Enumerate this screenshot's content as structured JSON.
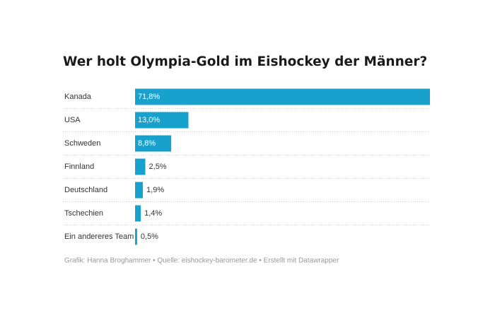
{
  "chart_data": {
    "type": "bar",
    "orientation": "horizontal",
    "title": "Wer holt Olympia-Gold im Eishockey der Männer?",
    "categories": [
      "Kanada",
      "USA",
      "Schweden",
      "Finnland",
      "Deutschland",
      "Tschechien",
      "Ein andereres Team"
    ],
    "values": [
      71.8,
      13.0,
      8.8,
      2.5,
      1.9,
      1.4,
      0.5
    ],
    "value_labels": [
      "71,8%",
      "13,0%",
      "8,8%",
      "2,5%",
      "1,9%",
      "1,4%",
      "0,5%"
    ],
    "color": "#18a1cd",
    "footer": "Grafik: Hanna Broghammer • Quelle: eishockey-barometer.de • Erstellt mit Datawrapper"
  }
}
